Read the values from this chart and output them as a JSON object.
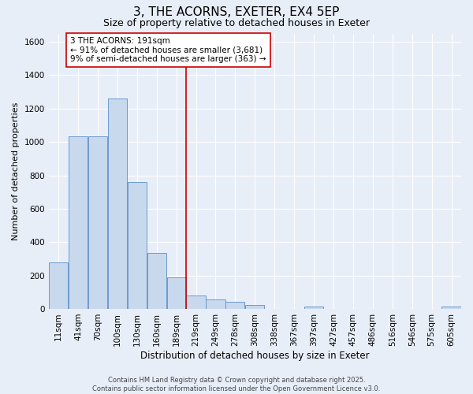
{
  "title": "3, THE ACORNS, EXETER, EX4 5EP",
  "subtitle": "Size of property relative to detached houses in Exeter",
  "xlabel": "Distribution of detached houses by size in Exeter",
  "ylabel": "Number of detached properties",
  "bar_color": "#c8d8ed",
  "bar_edge_color": "#5b8fc9",
  "categories": [
    "11sqm",
    "41sqm",
    "70sqm",
    "100sqm",
    "130sqm",
    "160sqm",
    "189sqm",
    "219sqm",
    "249sqm",
    "278sqm",
    "308sqm",
    "338sqm",
    "367sqm",
    "397sqm",
    "427sqm",
    "457sqm",
    "486sqm",
    "516sqm",
    "546sqm",
    "575sqm",
    "605sqm"
  ],
  "values": [
    280,
    1035,
    1035,
    1260,
    760,
    335,
    190,
    80,
    55,
    40,
    22,
    0,
    0,
    13,
    0,
    0,
    0,
    0,
    0,
    0,
    13
  ],
  "ylim": [
    0,
    1650
  ],
  "yticks": [
    0,
    200,
    400,
    600,
    800,
    1000,
    1200,
    1400,
    1600
  ],
  "vline_x_index": 6,
  "vline_color": "#cc0000",
  "annotation_text": "3 THE ACORNS: 191sqm\n← 91% of detached houses are smaller (3,681)\n9% of semi-detached houses are larger (363) →",
  "annotation_box_facecolor": "#ffffff",
  "annotation_box_edgecolor": "#cc0000",
  "bg_color": "#e8eef8",
  "plot_bg_color": "#e8eef8",
  "grid_color": "#ffffff",
  "footer_line1": "Contains HM Land Registry data © Crown copyright and database right 2025.",
  "footer_line2": "Contains public sector information licensed under the Open Government Licence v3.0.",
  "title_fontsize": 11,
  "subtitle_fontsize": 9,
  "ylabel_fontsize": 8,
  "xlabel_fontsize": 8.5,
  "tick_fontsize": 7.5,
  "ann_fontsize": 7.5,
  "footer_fontsize": 6.0
}
